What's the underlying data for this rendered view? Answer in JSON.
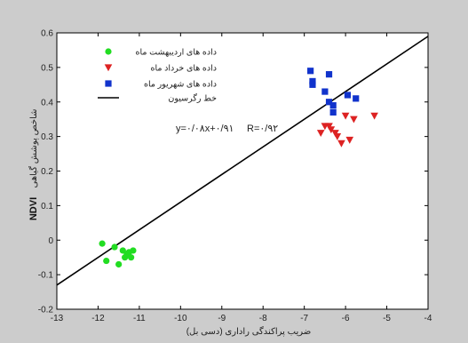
{
  "chart_data": {
    "type": "scatter",
    "xlabel": "ضریب پراکندگی راداری (دسی بل)",
    "ylabel_bold": "NDVI",
    "ylabel": "شاخص پوشش گیاهی",
    "xlim": [
      -13,
      -4
    ],
    "ylim": [
      -0.2,
      0.6
    ],
    "xticks": [
      "-13",
      "-12",
      "-11",
      "-10",
      "-9",
      "-8",
      "-7",
      "-6",
      "-5",
      "-4"
    ],
    "yticks": [
      "-0.2",
      "-0.1",
      "0",
      "0.1",
      "0.2",
      "0.3",
      "0.4",
      "0.5",
      "0.6"
    ],
    "grid": false,
    "legend_position": "top-left",
    "equation": "y=۰/۰۸x+۰/۹۱",
    "r_value": "R=۰/۹۲",
    "series": [
      {
        "name": "داده های اردیبهشت ماه",
        "color": "#22dd22",
        "marker": "circle",
        "points": [
          [
            -11.9,
            -0.01
          ],
          [
            -11.8,
            -0.06
          ],
          [
            -11.6,
            -0.02
          ],
          [
            -11.5,
            -0.07
          ],
          [
            -11.4,
            -0.03
          ],
          [
            -11.35,
            -0.05
          ],
          [
            -11.3,
            -0.04
          ],
          [
            -11.25,
            -0.035
          ],
          [
            -11.2,
            -0.05
          ],
          [
            -11.15,
            -0.03
          ]
        ]
      },
      {
        "name": "داده های خرداد ماه",
        "color": "#dd2222",
        "marker": "triangle-down",
        "points": [
          [
            -6.6,
            0.31
          ],
          [
            -6.5,
            0.33
          ],
          [
            -6.4,
            0.33
          ],
          [
            -6.35,
            0.32
          ],
          [
            -6.25,
            0.31
          ],
          [
            -6.2,
            0.3
          ],
          [
            -6.1,
            0.28
          ],
          [
            -6.0,
            0.36
          ],
          [
            -5.9,
            0.29
          ],
          [
            -5.8,
            0.35
          ],
          [
            -5.3,
            0.36
          ]
        ]
      },
      {
        "name": "داده های شهریور ماه",
        "color": "#1133cc",
        "marker": "square",
        "points": [
          [
            -6.85,
            0.49
          ],
          [
            -6.8,
            0.46
          ],
          [
            -6.8,
            0.45
          ],
          [
            -6.5,
            0.43
          ],
          [
            -6.4,
            0.48
          ],
          [
            -6.4,
            0.4
          ],
          [
            -6.3,
            0.39
          ],
          [
            -6.3,
            0.37
          ],
          [
            -5.95,
            0.42
          ],
          [
            -5.75,
            0.41
          ]
        ]
      }
    ],
    "regression": {
      "name": "خط رگرسیون",
      "color": "#000000",
      "from": [
        -13,
        -0.13
      ],
      "to": [
        -4,
        0.59
      ]
    }
  }
}
